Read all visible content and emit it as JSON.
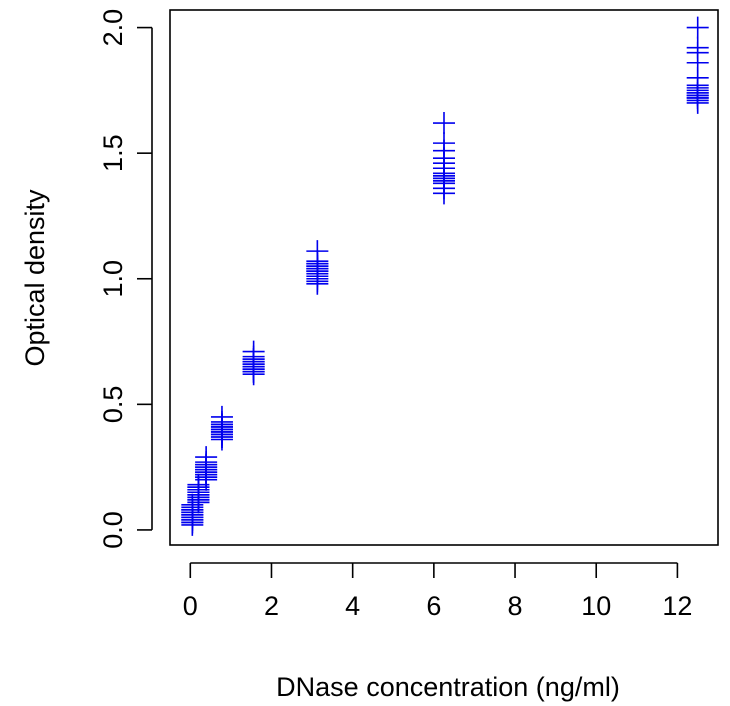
{
  "chart_data": {
    "type": "scatter",
    "xlabel": "DNase concentration (ng/ml)",
    "ylabel": "Optical density",
    "xlim": [
      -0.5,
      13.0
    ],
    "ylim": [
      -0.06,
      2.07
    ],
    "xticks": [
      0,
      2,
      4,
      6,
      8,
      10,
      12
    ],
    "yticks": [
      0.0,
      0.5,
      1.0,
      1.5,
      2.0
    ],
    "ytick_labels": [
      "0.0",
      "0.5",
      "1.0",
      "1.5",
      "2.0"
    ],
    "marker": "plus",
    "color": "#0000ee",
    "series": [
      {
        "points": [
          [
            0.05,
            0.02
          ],
          [
            0.05,
            0.03
          ],
          [
            0.05,
            0.04
          ],
          [
            0.05,
            0.05
          ],
          [
            0.05,
            0.06
          ],
          [
            0.05,
            0.07
          ],
          [
            0.05,
            0.08
          ],
          [
            0.05,
            0.1
          ],
          [
            0.05,
            0.03
          ],
          [
            0.05,
            0.05
          ],
          [
            0.05,
            0.06
          ],
          [
            0.05,
            0.08
          ],
          [
            0.05,
            0.09
          ],
          [
            0.05,
            0.04
          ],
          [
            0.05,
            0.07
          ],
          [
            0.2,
            0.11
          ],
          [
            0.2,
            0.12
          ],
          [
            0.2,
            0.13
          ],
          [
            0.2,
            0.14
          ],
          [
            0.2,
            0.15
          ],
          [
            0.2,
            0.16
          ],
          [
            0.2,
            0.17
          ],
          [
            0.2,
            0.18
          ],
          [
            0.2,
            0.12
          ],
          [
            0.2,
            0.14
          ],
          [
            0.2,
            0.15
          ],
          [
            0.2,
            0.16
          ],
          [
            0.2,
            0.13
          ],
          [
            0.2,
            0.17
          ],
          [
            0.2,
            0.11
          ],
          [
            0.39,
            0.2
          ],
          [
            0.39,
            0.21
          ],
          [
            0.39,
            0.22
          ],
          [
            0.39,
            0.23
          ],
          [
            0.39,
            0.24
          ],
          [
            0.39,
            0.25
          ],
          [
            0.39,
            0.26
          ],
          [
            0.39,
            0.27
          ],
          [
            0.39,
            0.29
          ],
          [
            0.39,
            0.22
          ],
          [
            0.39,
            0.24
          ],
          [
            0.39,
            0.25
          ],
          [
            0.39,
            0.21
          ],
          [
            0.39,
            0.23
          ],
          [
            0.39,
            0.26
          ],
          [
            0.78,
            0.36
          ],
          [
            0.78,
            0.37
          ],
          [
            0.78,
            0.38
          ],
          [
            0.78,
            0.39
          ],
          [
            0.78,
            0.4
          ],
          [
            0.78,
            0.41
          ],
          [
            0.78,
            0.42
          ],
          [
            0.78,
            0.43
          ],
          [
            0.78,
            0.45
          ],
          [
            0.78,
            0.38
          ],
          [
            0.78,
            0.4
          ],
          [
            0.78,
            0.41
          ],
          [
            0.78,
            0.37
          ],
          [
            0.78,
            0.39
          ],
          [
            0.78,
            0.42
          ],
          [
            1.56,
            0.62
          ],
          [
            1.56,
            0.63
          ],
          [
            1.56,
            0.64
          ],
          [
            1.56,
            0.65
          ],
          [
            1.56,
            0.66
          ],
          [
            1.56,
            0.67
          ],
          [
            1.56,
            0.68
          ],
          [
            1.56,
            0.69
          ],
          [
            1.56,
            0.71
          ],
          [
            1.56,
            0.64
          ],
          [
            1.56,
            0.66
          ],
          [
            1.56,
            0.67
          ],
          [
            1.56,
            0.63
          ],
          [
            1.56,
            0.65
          ],
          [
            1.56,
            0.68
          ],
          [
            3.13,
            0.98
          ],
          [
            3.13,
            0.99
          ],
          [
            3.13,
            1.0
          ],
          [
            3.13,
            1.02
          ],
          [
            3.13,
            1.03
          ],
          [
            3.13,
            1.04
          ],
          [
            3.13,
            1.05
          ],
          [
            3.13,
            1.06
          ],
          [
            3.13,
            1.07
          ],
          [
            3.13,
            1.11
          ],
          [
            3.13,
            1.01
          ],
          [
            3.13,
            1.03
          ],
          [
            3.13,
            1.04
          ],
          [
            3.13,
            1.05
          ],
          [
            3.13,
            1.06
          ],
          [
            6.25,
            1.34
          ],
          [
            6.25,
            1.36
          ],
          [
            6.25,
            1.38
          ],
          [
            6.25,
            1.39
          ],
          [
            6.25,
            1.4
          ],
          [
            6.25,
            1.41
          ],
          [
            6.25,
            1.42
          ],
          [
            6.25,
            1.44
          ],
          [
            6.25,
            1.46
          ],
          [
            6.25,
            1.48
          ],
          [
            6.25,
            1.51
          ],
          [
            6.25,
            1.54
          ],
          [
            6.25,
            1.62
          ],
          [
            6.25,
            1.39
          ],
          [
            6.25,
            1.41
          ],
          [
            6.25,
            1.4
          ],
          [
            12.5,
            1.7
          ],
          [
            12.5,
            1.71
          ],
          [
            12.5,
            1.72
          ],
          [
            12.5,
            1.73
          ],
          [
            12.5,
            1.74
          ],
          [
            12.5,
            1.75
          ],
          [
            12.5,
            1.76
          ],
          [
            12.5,
            1.77
          ],
          [
            12.5,
            1.8
          ],
          [
            12.5,
            1.86
          ],
          [
            12.5,
            1.9
          ],
          [
            12.5,
            1.92
          ],
          [
            12.5,
            2.0
          ],
          [
            12.5,
            1.73
          ],
          [
            12.5,
            1.74
          ],
          [
            12.5,
            1.72
          ]
        ]
      }
    ]
  }
}
